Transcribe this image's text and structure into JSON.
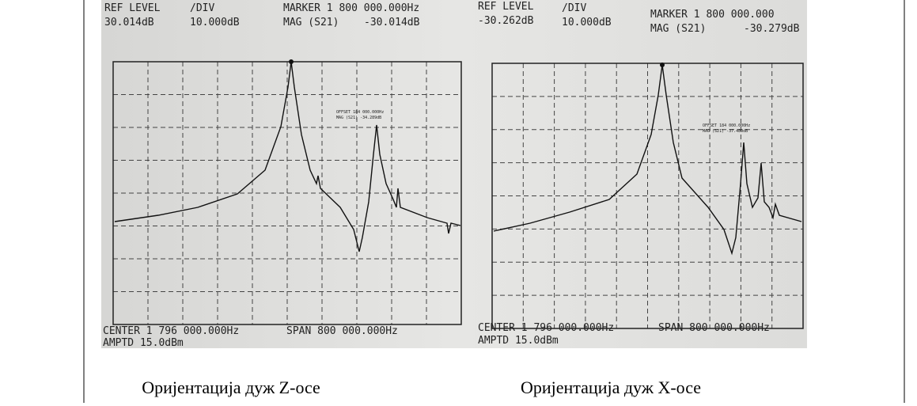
{
  "panels": [
    {
      "header": {
        "ref_label": "REF LEVEL",
        "ref_value": "30.014dB",
        "div_label": "/DIV",
        "div_value": "10.000dB",
        "marker": "MARKER 1 800 000.000Hz",
        "mag_label": "MAG (S21)",
        "mag_value": "-30.014dB"
      },
      "annotation": {
        "line1": "OFFSET 184 000.000Hz",
        "line2": "MAG (S21)   -34.289dB"
      },
      "footer": {
        "center": "CENTER 1 796 000.000Hz",
        "span": "SPAN 800 000.000Hz",
        "amptd": "AMPTD 15.0dBm"
      }
    },
    {
      "header": {
        "ref_label": "REF LEVEL",
        "ref_value": "-30.262dB",
        "div_label": "/DIV",
        "div_value": "10.000dB",
        "marker": "MARKER 1 800 000.000",
        "mag_label": "MAG (S21)",
        "mag_value": "-30.279dB"
      },
      "annotation": {
        "line1": "OFFSET 184 000.000Hz",
        "line2": "MAG (S21)   -37.489dB"
      },
      "footer": {
        "center": "CENTER 1 796 000.000Hz",
        "span": "SPAN 800 000.000Hz",
        "amptd": "AMPTD 15.0dBm"
      }
    }
  ],
  "captions": [
    "Оријентација дуж Z-осе",
    "Оријентација дуж X-осе"
  ]
}
